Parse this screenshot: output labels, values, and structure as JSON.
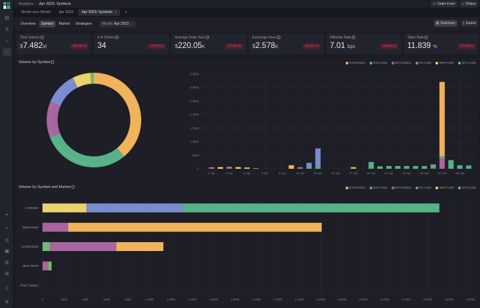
{
  "breadcrumb": {
    "root": "Analytics",
    "current": "Apr 2023: Symbols"
  },
  "top_buttons": {
    "order_form": "Order Form",
    "orders": "Orders"
  },
  "tabs": [
    {
      "label": "Month over Month",
      "active": false
    },
    {
      "label": "Apr 2023",
      "active": false
    },
    {
      "label": "Apr 2023: Symbols",
      "active": true,
      "closable": true
    }
  ],
  "add_tab": "+",
  "sub_tabs": [
    {
      "label": "Overview",
      "active": false
    },
    {
      "label": "Symbol",
      "active": true
    },
    {
      "label": "Market",
      "active": false
    },
    {
      "label": "Strategies",
      "active": false
    }
  ],
  "month_select": {
    "prefix": "Month:",
    "value": "Apr 2023"
  },
  "actions": {
    "summary": "Summary",
    "export": "Export"
  },
  "sidebar": {
    "top_icons": [
      "orders-icon",
      "transfer-icon",
      "trade-icon",
      "analytics-icon"
    ],
    "bottom_icons": [
      "status-dot-icon",
      "search-icon",
      "globe-icon",
      "notifications-icon",
      "settings-icon",
      "layout-icon",
      "panel-icon",
      "help-icon"
    ]
  },
  "kpis": [
    {
      "label": "Total Volume",
      "prefix": "$",
      "value": "7.482",
      "suffix": "M",
      "change": "-93.89 %"
    },
    {
      "label": "# of Orders",
      "prefix": "",
      "value": "34",
      "suffix": "",
      "change": "-77.78 %"
    },
    {
      "label": "Average Order Size",
      "prefix": "$",
      "value": "220.05",
      "suffix": "K",
      "change": "-70.24 %"
    },
    {
      "label": "Exchange Fees",
      "prefix": "$",
      "value": "2.578",
      "suffix": "K",
      "change": "-97.51 %"
    },
    {
      "label": "Effective Rate",
      "prefix": "",
      "value": "7.01",
      "suffix": "bps",
      "change": "-29.05 %"
    },
    {
      "label": "Taker Rate",
      "prefix": "",
      "value": "11.839",
      "suffix": "%",
      "change": "-77.49 %"
    }
  ],
  "colors": {
    "ETH/USDC": "#f0b25a",
    "ETH-USD": "#57b287",
    "BTC/USDC": "#a8659f",
    "FIL-USD": "#7a8bd0",
    "MKR-USD": "#e8d46a",
    "BTC-USD": "#6fba6f"
  },
  "chart_data": [
    {
      "type": "pie",
      "title": "Volume by Symbol",
      "legend": [
        "ETH/USDC",
        "ETH-USD",
        "BTC/USDC",
        "FIL-USD",
        "MKR-USD",
        "BTC-USD"
      ],
      "legend_position": "top-right",
      "slices": [
        {
          "label": "ETH/USDC",
          "value": 39.0
        },
        {
          "label": "ETH-USD",
          "value": 30.0
        },
        {
          "label": "BTC/USDC",
          "value": 12.3
        },
        {
          "label": "FIL-USD",
          "value": 11.3
        },
        {
          "label": "MKR-USD",
          "value": 6.2
        },
        {
          "label": "BTC-USD",
          "value": 1.2
        }
      ]
    },
    {
      "type": "bar",
      "stacked": true,
      "title": "Volume by Symbol (daily)",
      "ylim": [
        0,
        3500
      ],
      "yticks": [
        "0",
        "500k",
        "1,000k",
        "1,500k",
        "2,000k",
        "2,500k",
        "3,000k",
        "3,500k"
      ],
      "xtick_labels": [
        "1 Apr",
        "3 Apr",
        "5 Apr",
        "7 Apr",
        "9 Apr",
        "11 Apr",
        "13 Apr",
        "15 Apr",
        "17 Apr",
        "19 Apr",
        "21 Apr",
        "23 Apr",
        "25 Apr",
        "27 Apr",
        "29 Apr"
      ],
      "categories": [
        "1",
        "2",
        "3",
        "4",
        "5",
        "6",
        "7",
        "8",
        "9",
        "10",
        "11",
        "12",
        "13",
        "14",
        "15",
        "16",
        "17",
        "18",
        "19",
        "20",
        "21",
        "22",
        "23",
        "24",
        "25",
        "26",
        "27",
        "28",
        "29",
        "30"
      ],
      "series": [
        {
          "name": "ETH/USDC",
          "values": [
            20,
            0,
            25,
            0,
            20,
            15,
            0,
            0,
            0,
            130,
            0,
            0,
            0,
            0,
            0,
            0,
            60,
            0,
            0,
            0,
            0,
            0,
            0,
            0,
            0,
            0,
            2750,
            0,
            0,
            0
          ]
        },
        {
          "name": "ETH-USD",
          "values": [
            0,
            0,
            0,
            0,
            0,
            0,
            0,
            0,
            0,
            0,
            0,
            50,
            80,
            0,
            0,
            0,
            0,
            0,
            250,
            90,
            100,
            100,
            100,
            100,
            100,
            120,
            80,
            320,
            130,
            120
          ]
        },
        {
          "name": "BTC/USDC",
          "values": [
            30,
            0,
            40,
            0,
            0,
            0,
            0,
            0,
            0,
            0,
            60,
            0,
            0,
            0,
            0,
            0,
            0,
            0,
            0,
            0,
            0,
            0,
            0,
            0,
            0,
            40,
            380,
            0,
            0,
            0
          ]
        },
        {
          "name": "FIL-USD",
          "values": [
            0,
            0,
            0,
            0,
            0,
            0,
            0,
            0,
            0,
            0,
            0,
            170,
            670,
            0,
            0,
            0,
            0,
            0,
            0,
            0,
            0,
            0,
            0,
            0,
            0,
            0,
            0,
            0,
            0,
            0
          ]
        },
        {
          "name": "MKR-USD",
          "values": [
            0,
            60,
            0,
            60,
            30,
            0,
            0,
            0,
            0,
            0,
            0,
            0,
            0,
            0,
            0,
            0,
            0,
            0,
            0,
            0,
            0,
            0,
            0,
            0,
            0,
            0,
            0,
            0,
            0,
            0
          ]
        },
        {
          "name": "BTC-USD",
          "values": [
            0,
            0,
            0,
            0,
            0,
            0,
            0,
            0,
            0,
            0,
            0,
            0,
            0,
            0,
            0,
            0,
            0,
            0,
            0,
            0,
            0,
            0,
            0,
            0,
            0,
            0,
            0,
            0,
            0,
            0
          ]
        }
      ]
    },
    {
      "type": "bar",
      "orientation": "horizontal",
      "stacked": true,
      "title": "Volume by Symbol and Market",
      "legend": [
        "ETH/USDC",
        "ETH-USD",
        "BTC/USDC",
        "FIL-USD",
        "MKR-USD",
        "BTC-USD"
      ],
      "legend_position": "top-right",
      "xlim": [
        0,
        4000
      ],
      "xticks": [
        "0",
        "200k",
        "400k",
        "600k",
        "800k",
        "1,000k",
        "1,200k",
        "1,400k",
        "1,600k",
        "1,800k",
        "2,000k",
        "2,200k",
        "2,400k",
        "2,600k",
        "2,800k",
        "3,000k",
        "3,200k",
        "3,400k",
        "3,600k",
        "3,800k",
        "4,000k"
      ],
      "categories": [
        "Coinbase",
        "Wintermute",
        "Cumberland",
        "Jane Street",
        "Flow Traders"
      ],
      "series": [
        {
          "name": "MKR-USD",
          "values": [
            410,
            0,
            0,
            0,
            0
          ]
        },
        {
          "name": "FIL-USD",
          "values": [
            900,
            0,
            0,
            0,
            0
          ]
        },
        {
          "name": "ETH-USD",
          "values": [
            2400,
            0,
            0,
            0,
            0
          ]
        },
        {
          "name": "BTC-USD",
          "values": [
            0,
            0,
            70,
            30,
            0
          ]
        },
        {
          "name": "BTC/USDC",
          "values": [
            0,
            240,
            620,
            55,
            0
          ]
        },
        {
          "name": "ETH/USDC",
          "values": [
            0,
            2370,
            440,
            0,
            0
          ]
        }
      ],
      "stack_order": {
        "Coinbase": [
          "MKR-USD",
          "FIL-USD",
          "ETH-USD"
        ],
        "Wintermute": [
          "BTC/USDC",
          "ETH/USDC"
        ],
        "Cumberland": [
          "BTC-USD",
          "BTC/USDC",
          "ETH/USDC"
        ],
        "Jane Street": [
          "BTC/USDC",
          "BTC-USD"
        ],
        "Flow Traders": []
      }
    }
  ]
}
